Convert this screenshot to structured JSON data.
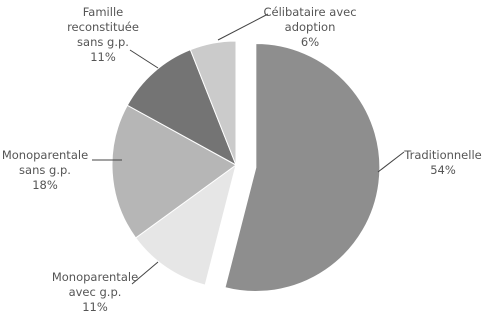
{
  "chart_data": {
    "type": "pie",
    "categories": [
      "Traditionnelle",
      "Monoparentale avec g.p.",
      "Monoparentale sans g.p.",
      "Famille reconstituée sans g.p.",
      "Célibataire avec adoption"
    ],
    "values": [
      54,
      11,
      18,
      11,
      6
    ],
    "value_labels": [
      "54%",
      "11%",
      "18%",
      "11%",
      "6%"
    ],
    "colors": [
      "#8e8e8e",
      "#e6e6e6",
      "#b6b6b6",
      "#747474",
      "#cbcbcb"
    ],
    "exploded": [
      true,
      false,
      false,
      false,
      false
    ]
  }
}
